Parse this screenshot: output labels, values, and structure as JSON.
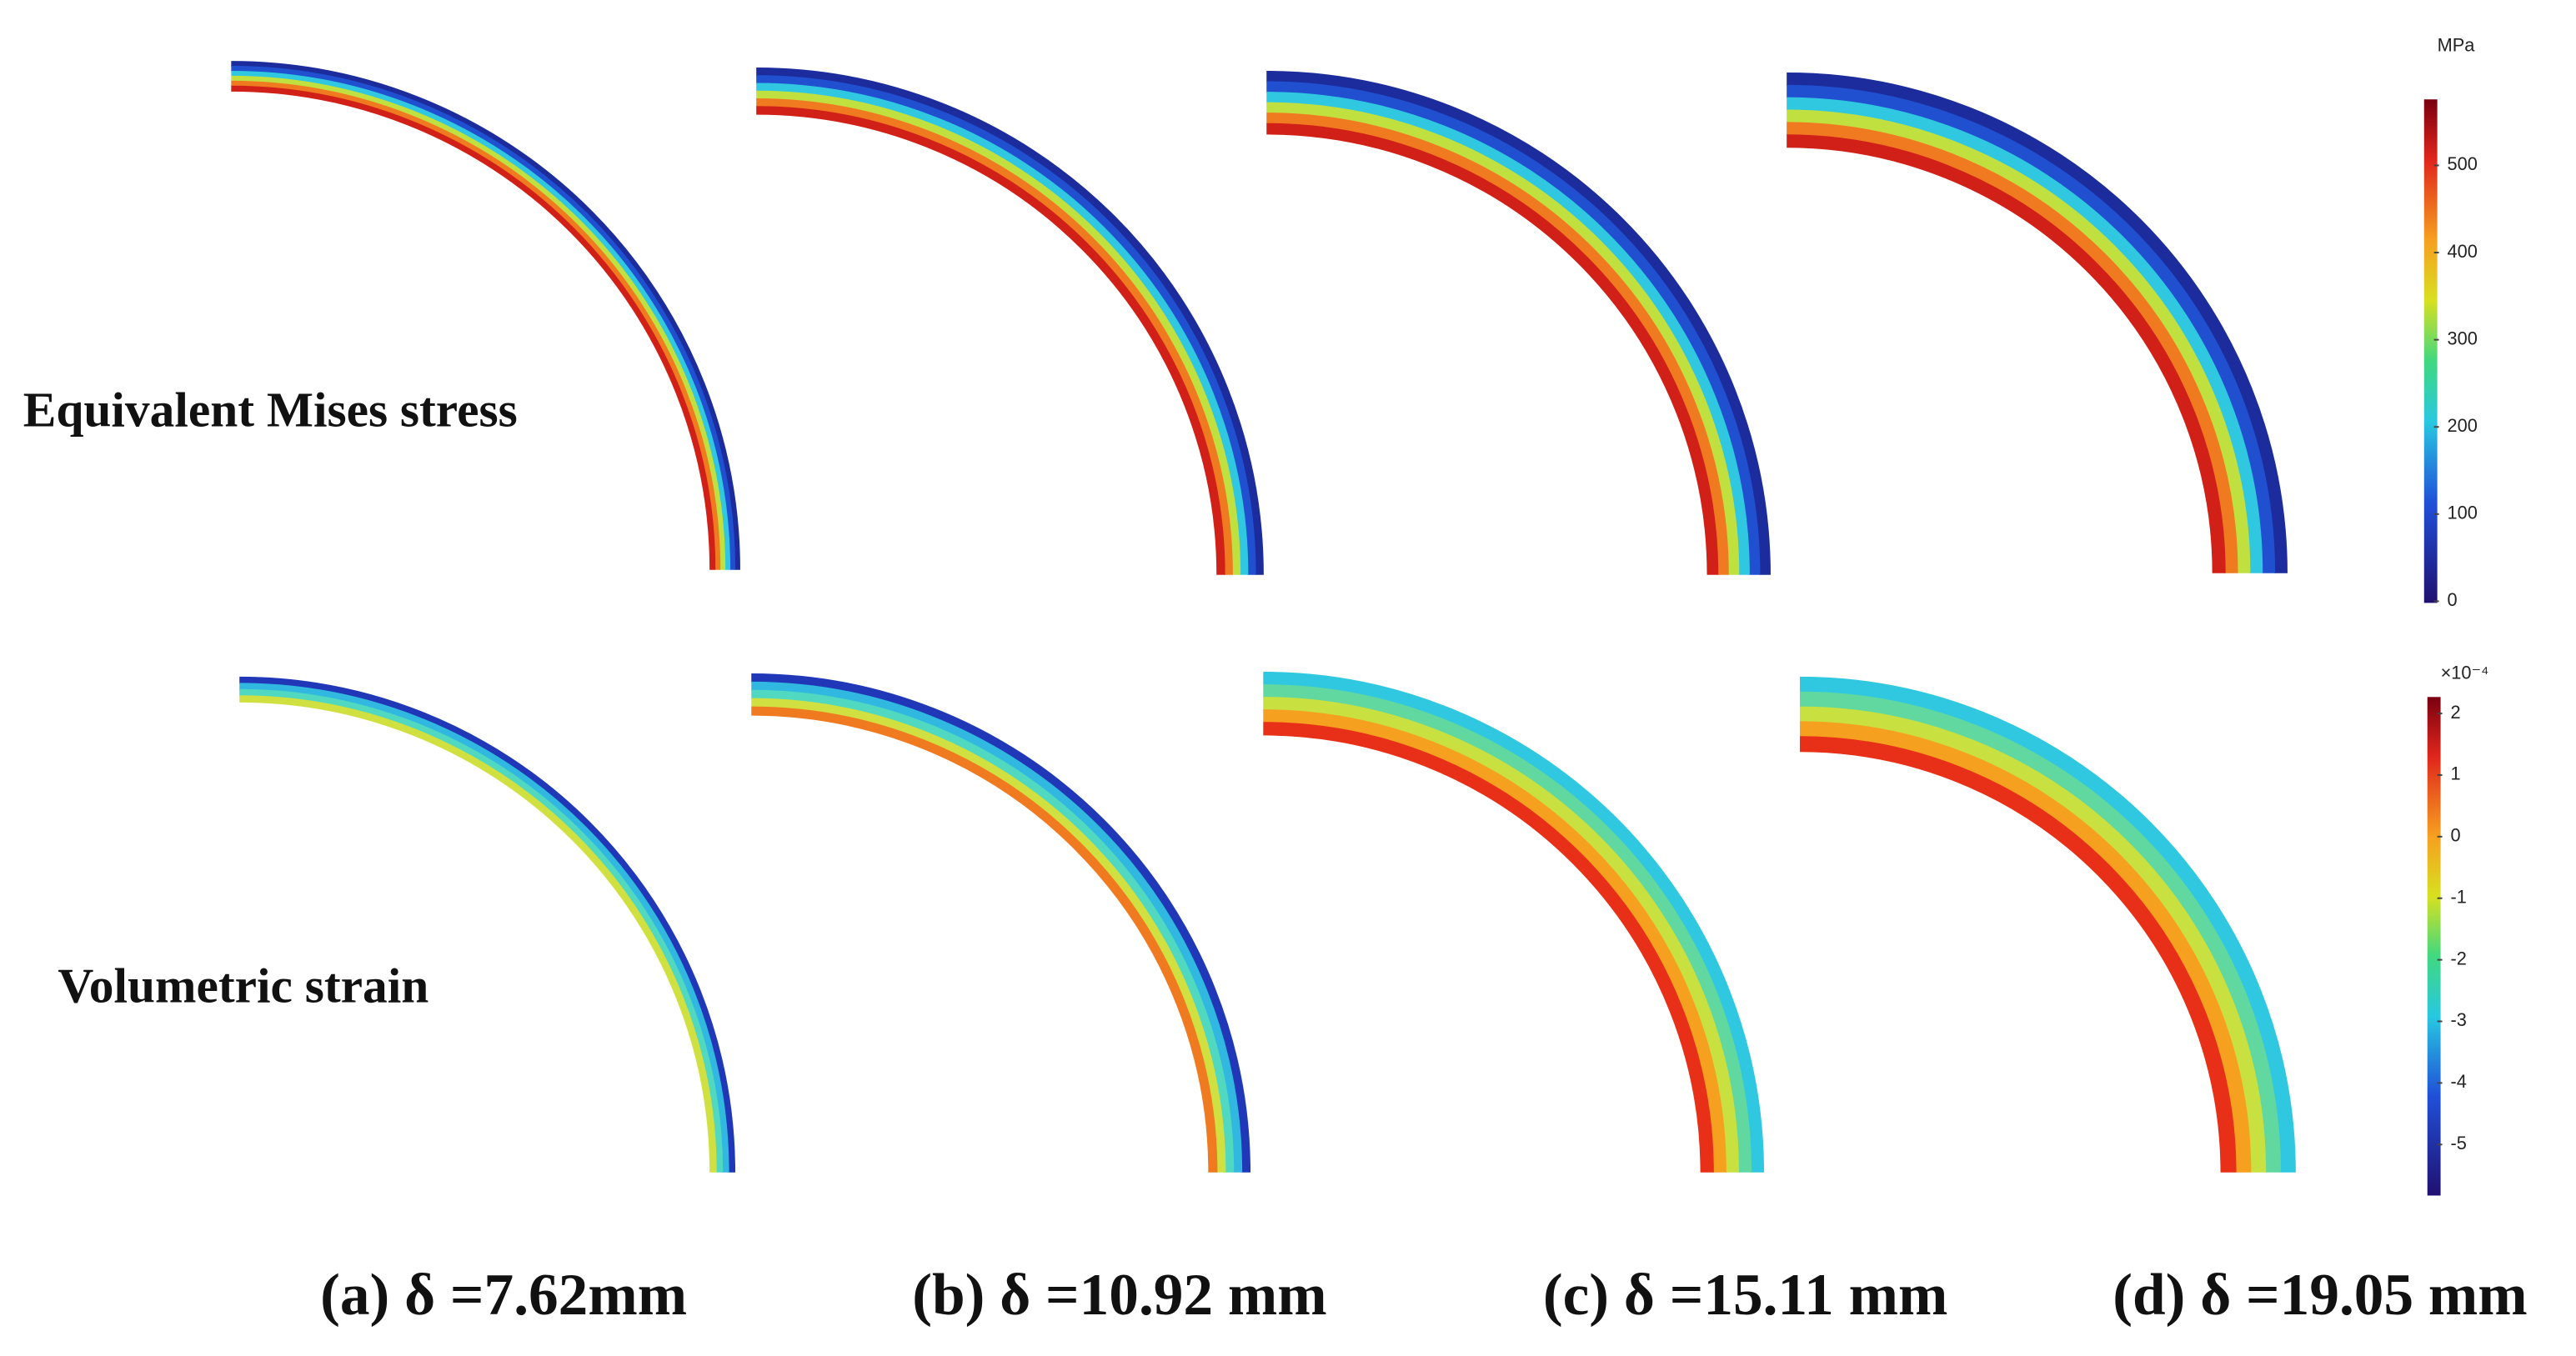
{
  "row_labels": [
    "Equivalent Mises stress",
    "Volumetric strain"
  ],
  "captions": [
    "(a) δ =7.62mm",
    "(b) δ =10.92 mm",
    "(c) δ =15.11 mm",
    "(d) δ =19.05 mm"
  ],
  "colorbars": [
    {
      "unit": "MPa",
      "ticks": [
        500,
        400,
        300,
        200,
        100,
        0
      ]
    },
    {
      "unit": "×10⁻⁴",
      "ticks": [
        2,
        1,
        0,
        -1,
        -2,
        -3,
        -4,
        -5
      ]
    }
  ]
}
